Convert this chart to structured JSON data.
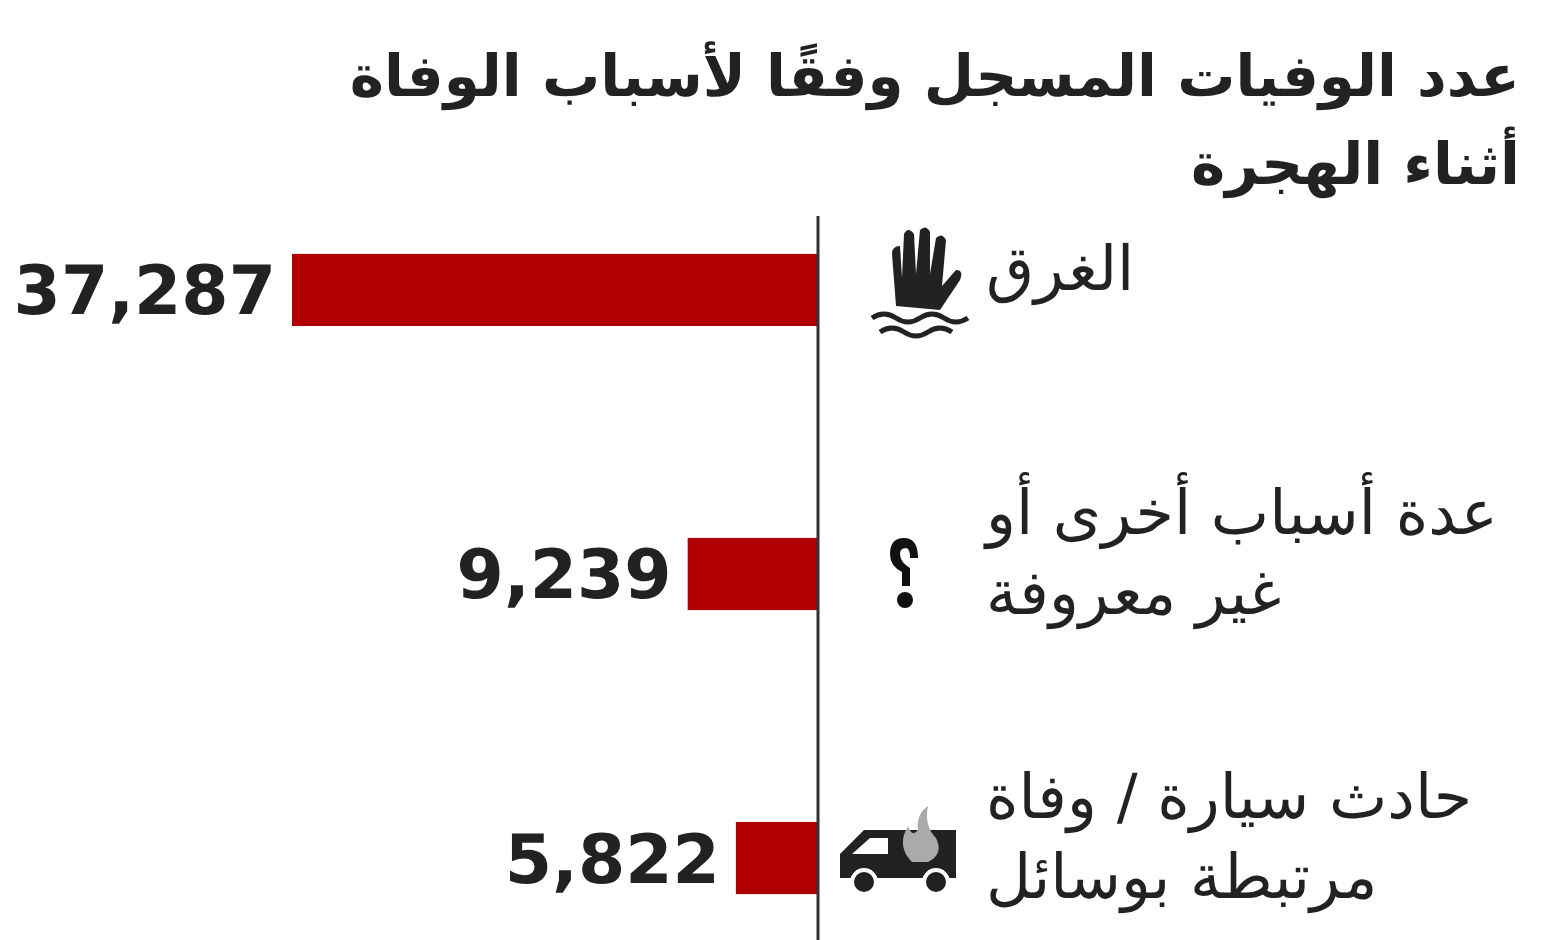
{
  "chart_data": {
    "type": "bar",
    "orientation": "horizontal",
    "title": "عدد الوفيات المسجل وفقًا لأسباب الوفاة\nأثناء الهجرة",
    "categories": [
      "الغرق",
      "عدة أسباب أخرى أو\nغير معروفة",
      "حادث سيارة / وفاة\nمرتبطة بوسائل"
    ],
    "values": [
      37287,
      9239,
      5822
    ],
    "color": "#b00000",
    "data_labels": true,
    "value_labels": [
      "37,287",
      "9,239",
      "5,822"
    ],
    "tick_labels": "y"
  }
}
